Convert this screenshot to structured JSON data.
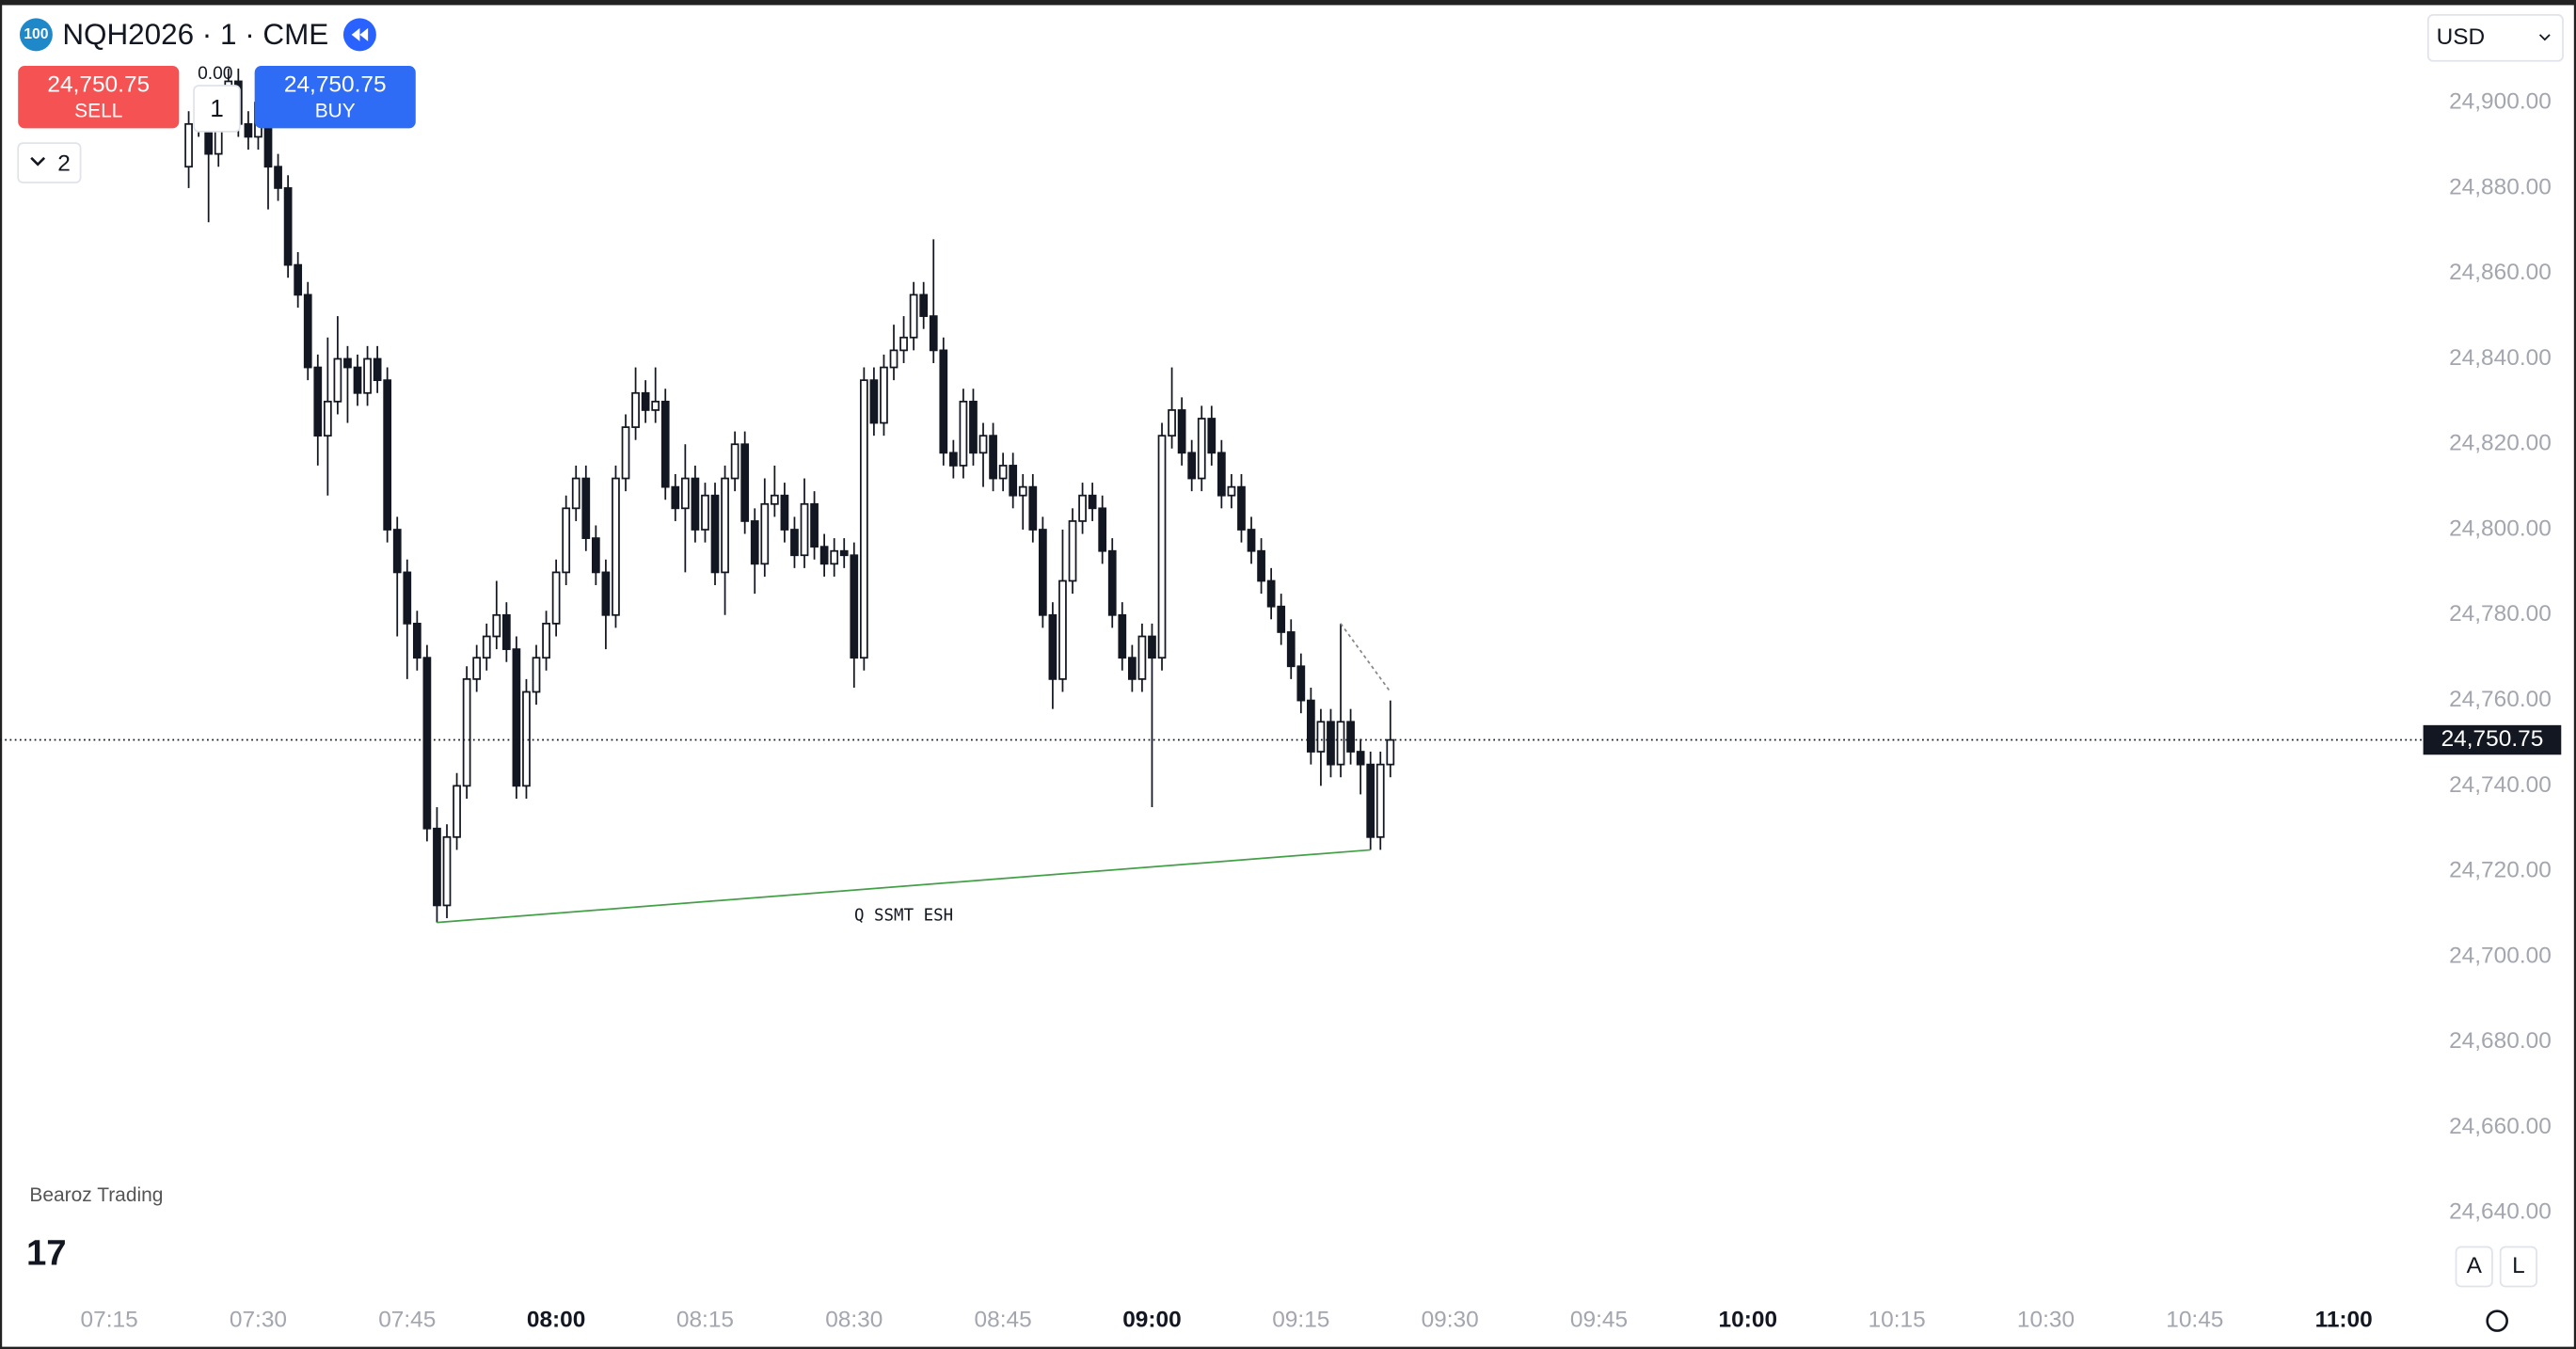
{
  "header": {
    "badge": "100",
    "symbol": "NQH2026 · 1 · CME",
    "change": "0.00",
    "currency": "USD",
    "collapse_count": "2",
    "author": "Bearoz Trading",
    "logo": "17",
    "scale_auto": "A",
    "scale_log": "L"
  },
  "order_panel": {
    "sell_price": "24,750.75",
    "sell": "SELL",
    "quantity": "1",
    "buy_price": "24,750.75",
    "buy": "BUY"
  },
  "chart_data": {
    "type": "candlestick",
    "up_color": "#ffffff",
    "down_color": "#131722",
    "outline_color": "#131722",
    "x": [
      "07:23",
      "07:24",
      "07:25",
      "07:26",
      "07:27",
      "07:28",
      "07:29",
      "07:30",
      "07:31",
      "07:32",
      "07:33",
      "07:34",
      "07:35",
      "07:36",
      "07:37",
      "07:38",
      "07:39",
      "07:40",
      "07:41",
      "07:42",
      "07:43",
      "07:44",
      "07:45",
      "07:46",
      "07:47",
      "07:48",
      "07:49",
      "07:50",
      "07:51",
      "07:52",
      "07:53",
      "07:54",
      "07:55",
      "07:56",
      "07:57",
      "07:58",
      "07:59",
      "08:00",
      "08:01",
      "08:02",
      "08:03",
      "08:04",
      "08:05",
      "08:06",
      "08:07",
      "08:08",
      "08:09",
      "08:10",
      "08:11",
      "08:12",
      "08:13",
      "08:14",
      "08:15",
      "08:16",
      "08:17",
      "08:18",
      "08:19",
      "08:20",
      "08:21",
      "08:22",
      "08:23",
      "08:24",
      "08:25",
      "08:26",
      "08:27",
      "08:28",
      "08:29",
      "08:30",
      "08:31",
      "08:32",
      "08:33",
      "08:34",
      "08:35",
      "08:36",
      "08:37",
      "08:38",
      "08:39",
      "08:40",
      "08:41",
      "08:42",
      "08:43",
      "08:44",
      "08:45",
      "08:46",
      "08:47",
      "08:48",
      "08:49",
      "08:50",
      "08:51",
      "08:52",
      "08:53",
      "08:54",
      "08:55",
      "08:56",
      "08:57",
      "08:58",
      "08:59",
      "09:00",
      "09:01",
      "09:02",
      "09:03",
      "09:04",
      "09:05",
      "09:06",
      "09:07",
      "09:08",
      "09:09",
      "09:10",
      "09:11",
      "09:12",
      "09:13",
      "09:14",
      "09:15",
      "09:16",
      "09:17",
      "09:18",
      "09:19",
      "09:20",
      "09:21",
      "09:22",
      "09:23",
      "09:24"
    ],
    "open": [
      24885,
      24895,
      24900,
      24888,
      24898,
      24905,
      24895,
      24892,
      24900,
      24885,
      24880,
      24862,
      24855,
      24838,
      24822,
      24830,
      24840,
      24838,
      24832,
      24840,
      24835,
      24800,
      24790,
      24778,
      24770,
      24730,
      24712,
      24728,
      24740,
      24765,
      24770,
      24775,
      24780,
      24772,
      24740,
      24762,
      24770,
      24778,
      24790,
      24805,
      24812,
      24798,
      24790,
      24780,
      24812,
      24824,
      24832,
      24828,
      24830,
      24810,
      24805,
      24812,
      24800,
      24808,
      24790,
      24812,
      24820,
      24802,
      24792,
      24806,
      24808,
      24800,
      24794,
      24806,
      24796,
      24792,
      24795,
      24794,
      24770,
      24835,
      24825,
      24838,
      24842,
      24845,
      24855,
      24850,
      24842,
      24818,
      24815,
      24830,
      24818,
      24822,
      24812,
      24815,
      24808,
      24810,
      24800,
      24780,
      24765,
      24788,
      24802,
      24808,
      24805,
      24795,
      24780,
      24770,
      24765,
      24775,
      24770,
      24822,
      24828,
      24818,
      24812,
      24826,
      24818,
      24808,
      24810,
      24800,
      24795,
      24788,
      24782,
      24776,
      24768,
      24760,
      24748,
      24755,
      24745,
      24755,
      24748,
      24745,
      24728,
      24745
    ],
    "high": [
      24898,
      24903,
      24903,
      24901,
      24908,
      24908,
      24898,
      24903,
      24903,
      24888,
      24883,
      24865,
      24858,
      24841,
      24845,
      24850,
      24843,
      24841,
      24843,
      24843,
      24838,
      24803,
      24793,
      24781,
      24773,
      24735,
      24731,
      24743,
      24768,
      24773,
      24778,
      24788,
      24783,
      24775,
      24765,
      24773,
      24781,
      24793,
      24808,
      24815,
      24815,
      24801,
      24793,
      24815,
      24827,
      24838,
      24835,
      24838,
      24833,
      24813,
      24820,
      24815,
      24811,
      24811,
      24815,
      24823,
      24823,
      24805,
      24812,
      24815,
      24811,
      24803,
      24812,
      24809,
      24799,
      24798,
      24798,
      24797,
      24838,
      24838,
      24841,
      24848,
      24850,
      24858,
      24858,
      24868,
      24845,
      24821,
      24833,
      24833,
      24825,
      24825,
      24818,
      24818,
      24813,
      24813,
      24803,
      24783,
      24800,
      24805,
      24811,
      24811,
      24808,
      24798,
      24783,
      24773,
      24778,
      24778,
      24825,
      24838,
      24831,
      24821,
      24829,
      24829,
      24821,
      24813,
      24813,
      24803,
      24798,
      24791,
      24785,
      24779,
      24771,
      24763,
      24758,
      24758,
      24778,
      24758,
      24751,
      24748,
      24748,
      24760
    ],
    "low": [
      24880,
      24892,
      24872,
      24885,
      24895,
      24892,
      24889,
      24889,
      24875,
      24877,
      24859,
      24852,
      24835,
      24815,
      24808,
      24827,
      24825,
      24829,
      24829,
      24832,
      24797,
      24775,
      24765,
      24767,
      24727,
      24708,
      24709,
      24725,
      24737,
      24762,
      24767,
      24772,
      24769,
      24737,
      24737,
      24759,
      24767,
      24775,
      24787,
      24802,
      24795,
      24787,
      24772,
      24777,
      24809,
      24821,
      24825,
      24825,
      24807,
      24802,
      24790,
      24797,
      24797,
      24787,
      24780,
      24809,
      24799,
      24785,
      24789,
      24803,
      24797,
      24791,
      24791,
      24793,
      24789,
      24789,
      24791,
      24763,
      24767,
      24822,
      24822,
      24835,
      24839,
      24842,
      24847,
      24839,
      24815,
      24812,
      24812,
      24815,
      24810,
      24809,
      24809,
      24805,
      24800,
      24797,
      24777,
      24758,
      24762,
      24785,
      24799,
      24802,
      24792,
      24777,
      24767,
      24762,
      24762,
      24735,
      24767,
      24819,
      24815,
      24809,
      24809,
      24815,
      24805,
      24805,
      24797,
      24792,
      24785,
      24779,
      24773,
      24765,
      24757,
      24745,
      24740,
      24742,
      24742,
      24745,
      24738,
      24725,
      24725,
      24742
    ],
    "close": [
      24895,
      24900,
      24888,
      24898,
      24905,
      24895,
      24892,
      24900,
      24885,
      24880,
      24862,
      24855,
      24838,
      24822,
      24830,
      24840,
      24838,
      24832,
      24840,
      24835,
      24800,
      24790,
      24778,
      24770,
      24730,
      24712,
      24728,
      24740,
      24765,
      24770,
      24775,
      24780,
      24772,
      24740,
      24762,
      24770,
      24778,
      24790,
      24805,
      24812,
      24798,
      24790,
      24780,
      24812,
      24824,
      24832,
      24828,
      24830,
      24810,
      24805,
      24812,
      24800,
      24808,
      24790,
      24812,
      24820,
      24802,
      24792,
      24806,
      24808,
      24800,
      24794,
      24806,
      24796,
      24792,
      24795,
      24794,
      24770,
      24835,
      24825,
      24838,
      24842,
      24845,
      24855,
      24850,
      24842,
      24818,
      24815,
      24830,
      24818,
      24822,
      24812,
      24815,
      24808,
      24810,
      24800,
      24780,
      24765,
      24788,
      24802,
      24808,
      24805,
      24795,
      24780,
      24770,
      24765,
      24775,
      24770,
      24822,
      24828,
      24818,
      24812,
      24826,
      24818,
      24808,
      24810,
      24800,
      24795,
      24788,
      24782,
      24776,
      24768,
      24760,
      24748,
      24755,
      24745,
      24755,
      24748,
      24745,
      24728,
      24745,
      24750.75
    ],
    "xlim": [
      "07:04",
      "11:08"
    ],
    "xticks": [
      "07:15",
      "07:30",
      "07:45",
      "08:00",
      "08:15",
      "08:30",
      "08:45",
      "09:00",
      "09:15",
      "09:30",
      "09:45",
      "10:00",
      "10:15",
      "10:30",
      "10:45",
      "11:00"
    ],
    "ylim": [
      24622,
      24924
    ],
    "yticks": [
      {
        "value": 24640,
        "label": "24,640.00"
      },
      {
        "value": 24660,
        "label": "24,660.00"
      },
      {
        "value": 24680,
        "label": "24,680.00"
      },
      {
        "value": 24700,
        "label": "24,700.00"
      },
      {
        "value": 24720,
        "label": "24,720.00"
      },
      {
        "value": 24740,
        "label": "24,740.00"
      },
      {
        "value": 24760,
        "label": "24,760.00"
      },
      {
        "value": 24780,
        "label": "24,780.00"
      },
      {
        "value": 24800,
        "label": "24,800.00"
      },
      {
        "value": 24820,
        "label": "24,820.00"
      },
      {
        "value": 24840,
        "label": "24,840.00"
      },
      {
        "value": 24860,
        "label": "24,860.00"
      },
      {
        "value": 24880,
        "label": "24,880.00"
      },
      {
        "value": 24900,
        "label": "24,900.00"
      }
    ],
    "grid": false,
    "last_price": {
      "value": 24750.75,
      "label": "24,750.75"
    },
    "annotations": [
      {
        "text": "Q SSMT ESH",
        "color": "#43a047",
        "x": [
          "07:48",
          "09:22"
        ],
        "y": [
          24708,
          24725
        ]
      },
      {
        "color": "#888888",
        "style": "dotted",
        "x": [
          "09:19",
          "09:24"
        ],
        "y": [
          24778,
          24762
        ]
      }
    ]
  }
}
